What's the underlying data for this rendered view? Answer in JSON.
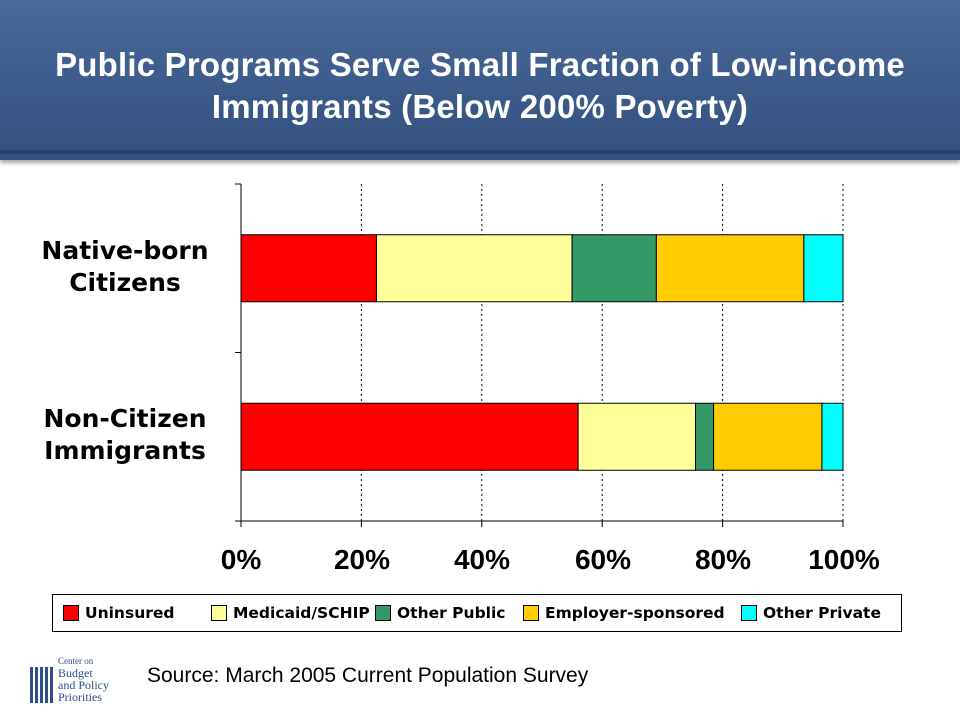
{
  "header": {
    "title": "Public Programs Serve Small Fraction of Low-income Immigrants (Below 200% Poverty)"
  },
  "source": "Source: March 2005 Current Population Survey",
  "logo": {
    "line1": "Center on",
    "line2": "Budget",
    "line3": "and Policy",
    "line4": "Priorities"
  },
  "colors": {
    "uninsured": "#ff0000",
    "medicaid": "#ffff99",
    "other_public": "#339966",
    "employer": "#ffcc00",
    "other_private": "#00ffff"
  },
  "chart_data": {
    "type": "bar",
    "orientation": "horizontal",
    "stacked": true,
    "percent": true,
    "categories": [
      "Native-born Citizens",
      "Non-Citizen Immigrants"
    ],
    "series": [
      {
        "name": "Uninsured",
        "values": [
          22.5,
          56
        ],
        "color": "#ff0000"
      },
      {
        "name": "Medicaid/SCHIP",
        "values": [
          32.5,
          19.5
        ],
        "color": "#ffff99"
      },
      {
        "name": "Other Public",
        "values": [
          14,
          3
        ],
        "color": "#339966"
      },
      {
        "name": "Employer-sponsored",
        "values": [
          24.5,
          18
        ],
        "color": "#ffcc00"
      },
      {
        "name": "Other Private",
        "values": [
          6.5,
          3.5
        ],
        "color": "#00ffff"
      }
    ],
    "xlim": [
      0,
      100
    ],
    "xticks": [
      "0%",
      "20%",
      "40%",
      "60%",
      "80%",
      "100%"
    ],
    "grid": "vertical dotted",
    "legend": "bottom"
  }
}
